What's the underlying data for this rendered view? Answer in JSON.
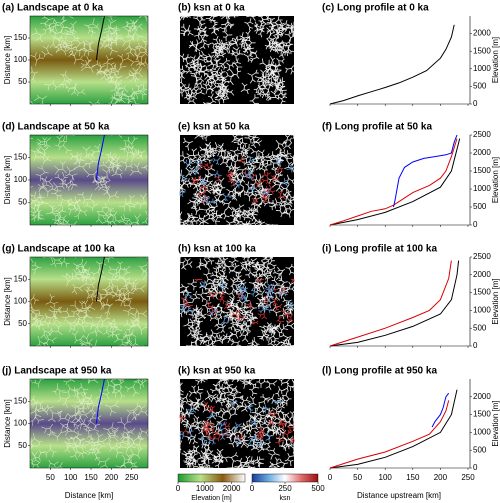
{
  "maps": [
    {
      "title": "(a) Landscape at 0 ka",
      "river": "#000000",
      "center": "#7a5a10"
    },
    {
      "title": "(d) Landscape at 50 ka",
      "river": "#0000ff",
      "center": "#5a4a8a"
    },
    {
      "title": "(g) Landscape at 100 ka",
      "river": "#000000",
      "center": "#7a5a10"
    },
    {
      "title": "(j) Landscape at 950 ka",
      "river": "#0000ff",
      "center": "#5a4a8a"
    }
  ],
  "ksn_maps": [
    {
      "title": "(b) ksn at 0 ka"
    },
    {
      "title": "(e) ksn at 50 ka"
    },
    {
      "title": "(h) ksn at 100 ka"
    },
    {
      "title": "(k) ksn at 950 ka"
    }
  ],
  "map_axes": {
    "xlabel": "Distance [km]",
    "ylabel": "Distance [km]",
    "xlim": [
      0,
      290
    ],
    "ylim": [
      0,
      200
    ],
    "xticks": [
      50,
      100,
      150,
      200,
      250
    ],
    "yticks": [
      50,
      100,
      150
    ]
  },
  "colorbars": [
    {
      "label": "Elevation [m]",
      "lim": [
        0,
        2500
      ],
      "ticks": [
        0,
        1000,
        2000
      ],
      "colors": [
        "#1a9a30",
        "#b8e08a",
        "#8a5a10",
        "#ffffff"
      ]
    },
    {
      "label": "ksn",
      "lim": [
        0,
        500
      ],
      "ticks": [
        0,
        250,
        500
      ],
      "colors": [
        "#1a3a9a",
        "#6aaae0",
        "#ffffff",
        "#e06a6a",
        "#9a1010"
      ]
    }
  ],
  "chart_data": [
    {
      "type": "line",
      "title": "(c) Long profile at 0 ka",
      "ylabel": "Elevation [m]",
      "xlim": [
        0,
        250
      ],
      "ylim": [
        0,
        2500
      ],
      "xticks": [
        0,
        50,
        100,
        150,
        200,
        250
      ],
      "yticks": [
        0,
        500,
        1000,
        1500,
        2000
      ],
      "series": [
        {
          "color": "#000000",
          "x": [
            0,
            25,
            50,
            75,
            100,
            125,
            150,
            175,
            200,
            210,
            220,
            225
          ],
          "values": [
            0,
            100,
            230,
            350,
            470,
            600,
            760,
            950,
            1300,
            1550,
            1900,
            2250
          ]
        }
      ]
    },
    {
      "type": "line",
      "title": "(f) Long profile at 50 ka",
      "ylabel": "Elevation [m]",
      "xlim": [
        0,
        250
      ],
      "ylim": [
        0,
        2500
      ],
      "xticks": [
        0,
        50,
        100,
        150,
        200,
        250
      ],
      "yticks": [
        0,
        500,
        1000,
        1500,
        2000,
        2500
      ],
      "series": [
        {
          "color": "#000000",
          "x": [
            0,
            50,
            100,
            150,
            200,
            220,
            235
          ],
          "values": [
            0,
            150,
            350,
            650,
            1050,
            1500,
            2400
          ]
        },
        {
          "color": "#dd0000",
          "x": [
            0,
            25,
            50,
            75,
            100,
            115,
            150,
            180,
            200,
            210,
            220,
            230
          ],
          "values": [
            0,
            120,
            250,
            380,
            450,
            550,
            900,
            1100,
            1300,
            1500,
            1900,
            2400
          ]
        },
        {
          "color": "#0000ff",
          "x": [
            115,
            118,
            125,
            135,
            150,
            170,
            190,
            210,
            220,
            225,
            230
          ],
          "values": [
            500,
            700,
            1300,
            1600,
            1750,
            1850,
            1900,
            1950,
            2000,
            2300,
            2500
          ]
        }
      ]
    },
    {
      "type": "line",
      "title": "(i) Long profile at 100 ka",
      "ylabel": "Elevation [m]",
      "xlim": [
        0,
        250
      ],
      "ylim": [
        0,
        2500
      ],
      "xticks": [
        0,
        50,
        100,
        150,
        200,
        250
      ],
      "yticks": [
        0,
        500,
        1000,
        1500,
        2000,
        2500
      ],
      "series": [
        {
          "color": "#000000",
          "x": [
            0,
            50,
            100,
            150,
            200,
            220,
            230,
            233
          ],
          "values": [
            0,
            100,
            300,
            550,
            900,
            1300,
            2000,
            2400
          ]
        },
        {
          "color": "#dd0000",
          "x": [
            0,
            50,
            100,
            150,
            180,
            200,
            215,
            220
          ],
          "values": [
            0,
            250,
            500,
            800,
            1000,
            1300,
            1900,
            2400
          ]
        }
      ]
    },
    {
      "type": "line",
      "title": "(l) Long profile at 950 ka",
      "xlabel": "Distance upstream [km]",
      "ylabel": "Elevation [m]",
      "xlim": [
        0,
        250
      ],
      "ylim": [
        0,
        2500
      ],
      "xticks": [
        0,
        50,
        100,
        150,
        200,
        250
      ],
      "yticks": [
        0,
        500,
        1000,
        1500,
        2000
      ],
      "series": [
        {
          "color": "#000000",
          "x": [
            0,
            50,
            100,
            150,
            200,
            220,
            230
          ],
          "values": [
            0,
            100,
            300,
            600,
            1000,
            1500,
            2200
          ]
        },
        {
          "color": "#dd0000",
          "x": [
            0,
            50,
            100,
            150,
            180,
            200,
            210,
            215
          ],
          "values": [
            0,
            250,
            450,
            750,
            950,
            1300,
            1600,
            1900
          ]
        },
        {
          "color": "#0000ff",
          "x": [
            185,
            190,
            200,
            205,
            210,
            215
          ],
          "values": [
            1150,
            1300,
            1500,
            1700,
            2000,
            2100
          ]
        }
      ]
    }
  ]
}
